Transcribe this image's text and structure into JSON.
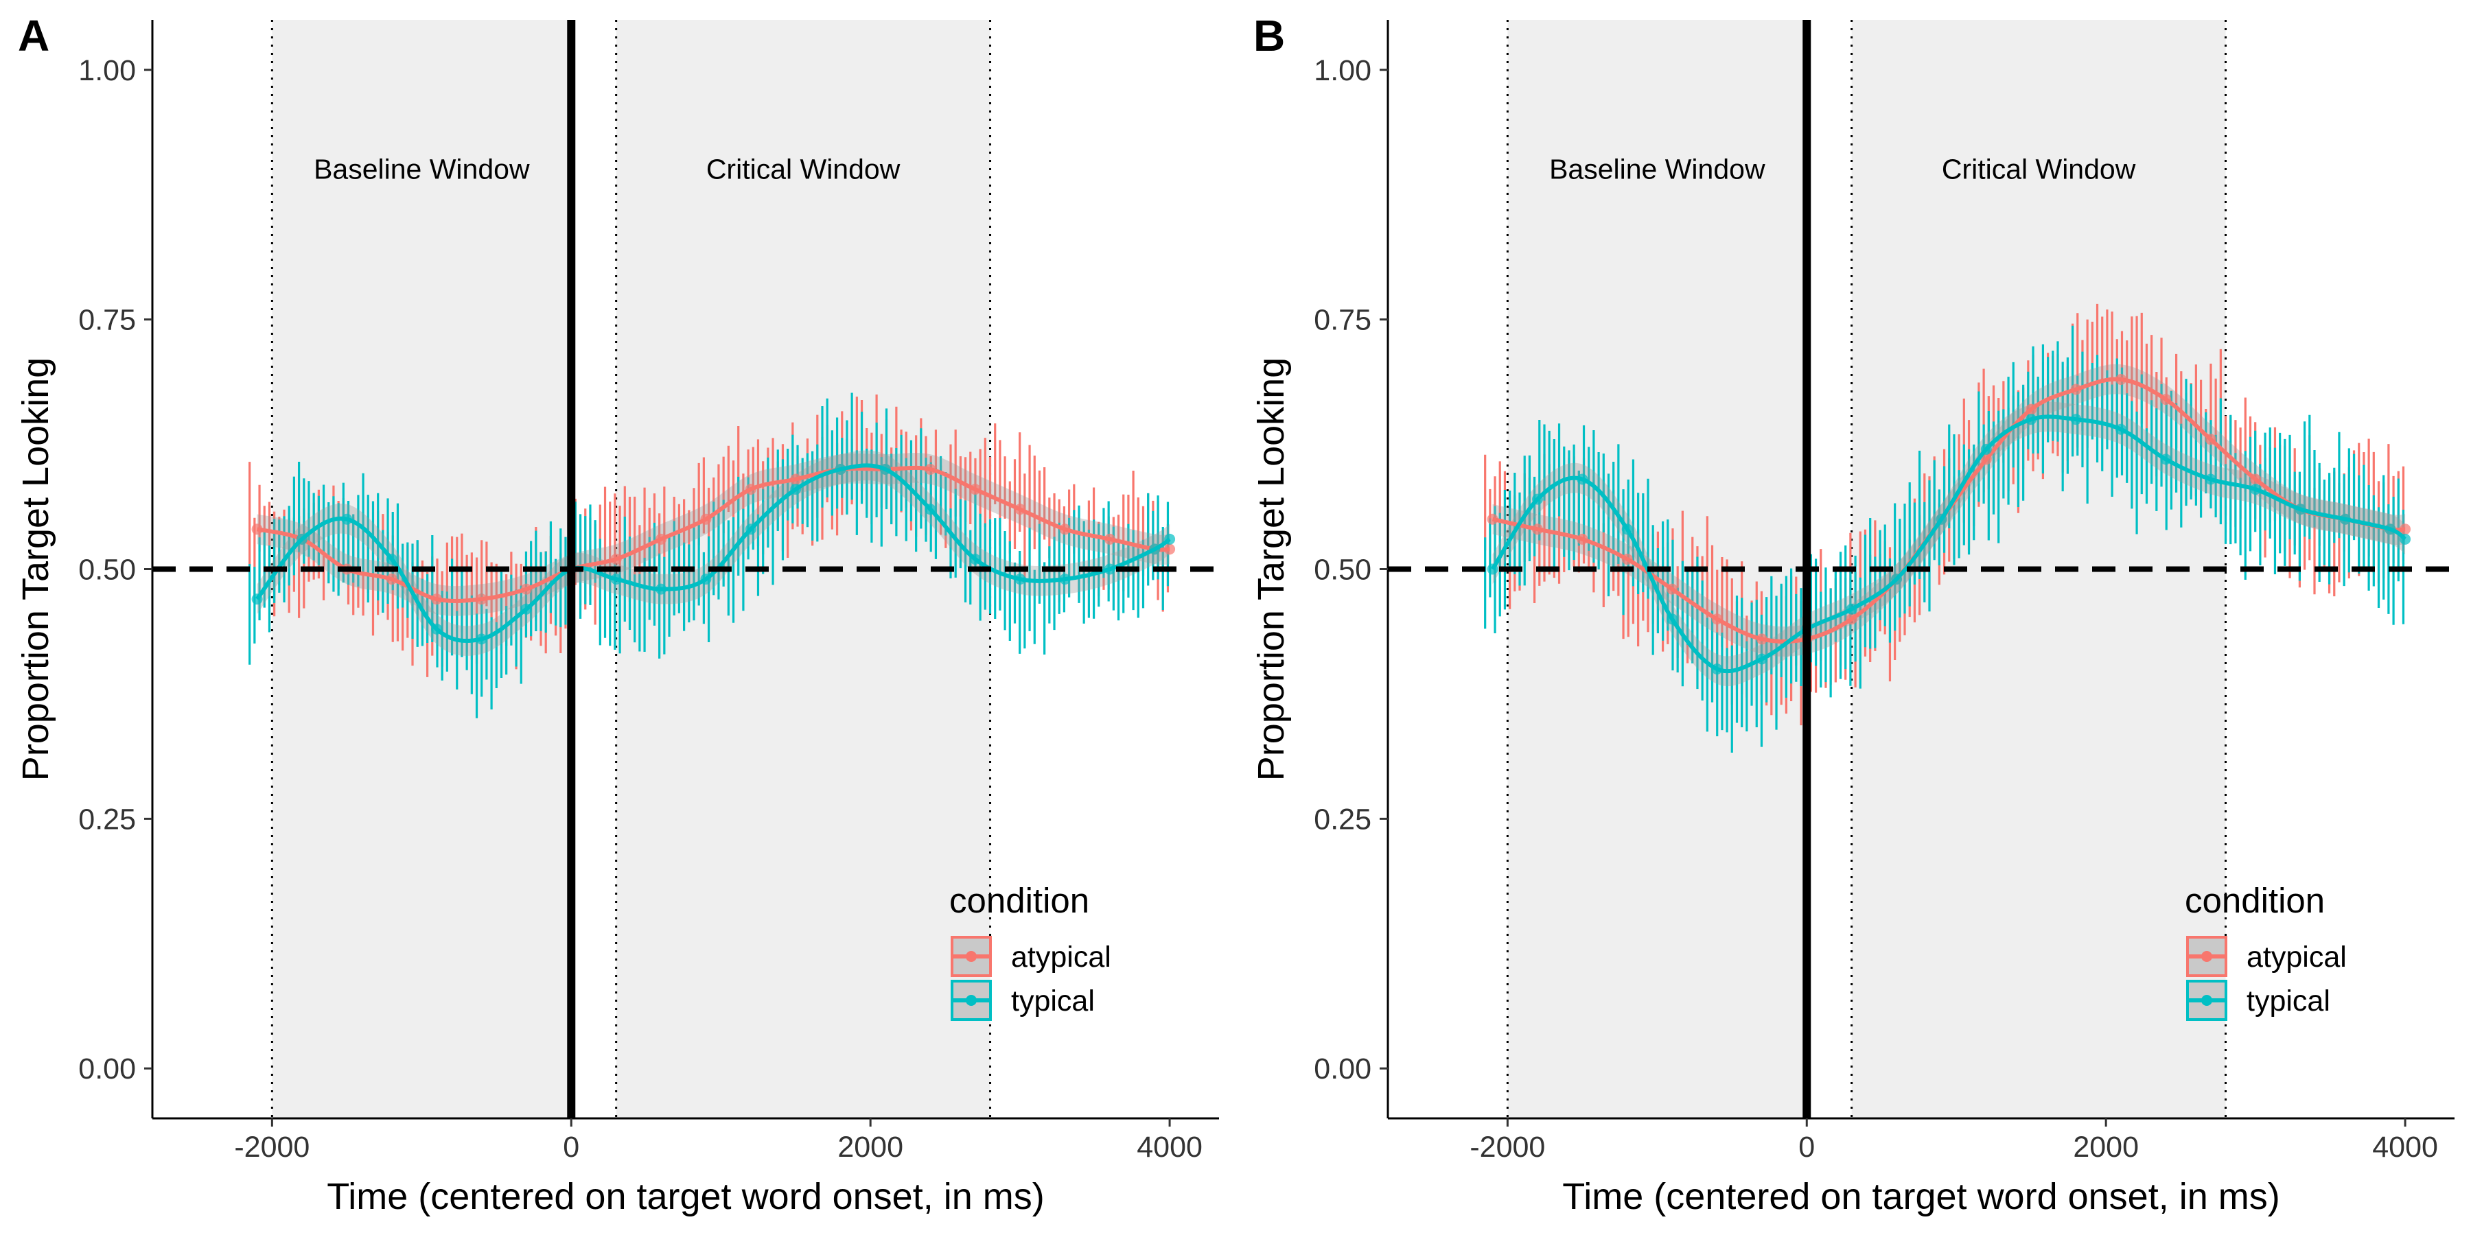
{
  "chart_data": [
    {
      "panel": "A",
      "type": "line",
      "xlabel": "Time (centered on target word onset, in ms)",
      "ylabel": "Proportion Target Looking",
      "xlim": [
        -2800,
        4330
      ],
      "ylim": [
        -0.05,
        1.05
      ],
      "xticks": [
        -2000,
        0,
        2000,
        4000
      ],
      "xtick_labels": [
        "-2000",
        "0",
        "2000",
        "4000"
      ],
      "yticks": [
        0,
        0.25,
        0.5,
        0.75,
        1.0
      ],
      "ytick_labels": [
        "0.00",
        "0.25",
        "0.50",
        "0.75",
        "1.00"
      ],
      "reference_line_y": 0.5,
      "onset_line_x": 0,
      "windows": [
        {
          "label": "Baseline Window",
          "start": -2000,
          "end": 0
        },
        {
          "label": "Critical Window",
          "start": 300,
          "end": 2800
        }
      ],
      "legend": {
        "title": "condition",
        "placement": "bottom-right"
      },
      "series": [
        {
          "name": "atypical",
          "color": "#F8766D",
          "x": [
            -2100,
            -1800,
            -1500,
            -1200,
            -900,
            -600,
            -300,
            0,
            300,
            600,
            900,
            1200,
            1500,
            1800,
            2100,
            2400,
            2700,
            3000,
            3300,
            3600,
            3900,
            4000
          ],
          "y": [
            0.54,
            0.53,
            0.5,
            0.49,
            0.47,
            0.47,
            0.48,
            0.5,
            0.51,
            0.53,
            0.55,
            0.58,
            0.59,
            0.6,
            0.6,
            0.6,
            0.58,
            0.56,
            0.54,
            0.53,
            0.52,
            0.52
          ],
          "ci_halfwidth": 0.04
        },
        {
          "name": "typical",
          "color": "#00BFC4",
          "x": [
            -2100,
            -1800,
            -1500,
            -1200,
            -900,
            -600,
            -300,
            0,
            300,
            600,
            900,
            1200,
            1500,
            1800,
            2100,
            2400,
            2700,
            3000,
            3300,
            3600,
            3900,
            4000
          ],
          "y": [
            0.47,
            0.53,
            0.55,
            0.51,
            0.44,
            0.43,
            0.46,
            0.5,
            0.49,
            0.48,
            0.49,
            0.54,
            0.58,
            0.6,
            0.6,
            0.56,
            0.51,
            0.49,
            0.49,
            0.5,
            0.52,
            0.53
          ],
          "ci_halfwidth": 0.04
        }
      ]
    },
    {
      "panel": "B",
      "type": "line",
      "xlabel": "Time (centered on target word onset, in ms)",
      "ylabel": "Proportion Target Looking",
      "xlim": [
        -2800,
        4330
      ],
      "ylim": [
        -0.05,
        1.05
      ],
      "xticks": [
        -2000,
        0,
        2000,
        4000
      ],
      "xtick_labels": [
        "-2000",
        "0",
        "2000",
        "4000"
      ],
      "yticks": [
        0,
        0.25,
        0.5,
        0.75,
        1.0
      ],
      "ytick_labels": [
        "0.00",
        "0.25",
        "0.50",
        "0.75",
        "1.00"
      ],
      "reference_line_y": 0.5,
      "onset_line_x": 0,
      "windows": [
        {
          "label": "Baseline Window",
          "start": -2000,
          "end": 0
        },
        {
          "label": "Critical Window",
          "start": 300,
          "end": 2800
        }
      ],
      "legend": {
        "title": "condition",
        "placement": "bottom-right"
      },
      "series": [
        {
          "name": "atypical",
          "color": "#F8766D",
          "x": [
            -2100,
            -1800,
            -1500,
            -1200,
            -900,
            -600,
            -300,
            0,
            300,
            600,
            900,
            1200,
            1500,
            1800,
            2100,
            2400,
            2700,
            3000,
            3300,
            3600,
            3900,
            4000
          ],
          "y": [
            0.55,
            0.54,
            0.53,
            0.51,
            0.48,
            0.45,
            0.43,
            0.43,
            0.45,
            0.49,
            0.55,
            0.61,
            0.66,
            0.68,
            0.69,
            0.67,
            0.63,
            0.59,
            0.56,
            0.55,
            0.54,
            0.54
          ],
          "ci_halfwidth": 0.05
        },
        {
          "name": "typical",
          "color": "#00BFC4",
          "x": [
            -2100,
            -1800,
            -1500,
            -1200,
            -900,
            -600,
            -300,
            0,
            300,
            600,
            900,
            1200,
            1500,
            1800,
            2100,
            2400,
            2700,
            3000,
            3300,
            3600,
            3900,
            4000
          ],
          "y": [
            0.5,
            0.57,
            0.59,
            0.54,
            0.45,
            0.4,
            0.41,
            0.44,
            0.46,
            0.49,
            0.55,
            0.62,
            0.65,
            0.65,
            0.64,
            0.61,
            0.59,
            0.58,
            0.56,
            0.55,
            0.54,
            0.53
          ],
          "ci_halfwidth": 0.05
        }
      ]
    }
  ]
}
